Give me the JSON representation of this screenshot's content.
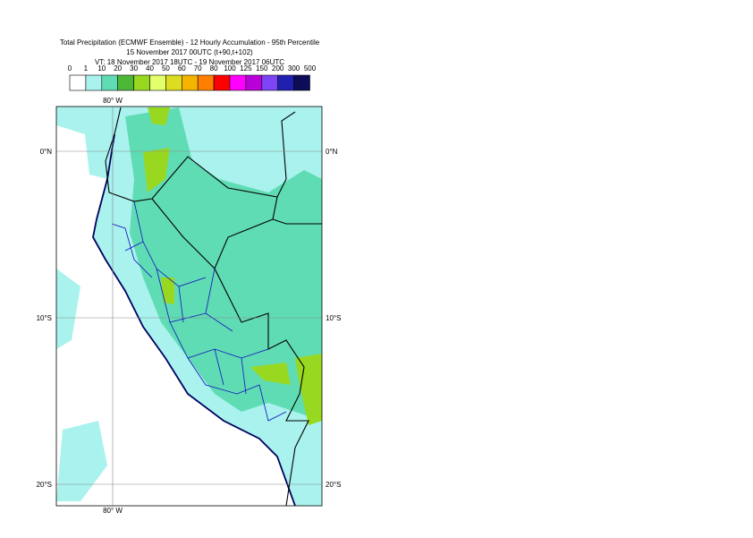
{
  "header": {
    "title": "Total Precipitation (ECMWF Ensemble) - 12 Hourly Accumulation - 95th Percentile",
    "line2": "15 November 2017 00UTC (t+90,t+102)",
    "line3": "VT: 18 November 2017 18UTC - 19 November 2017 06UTC"
  },
  "legend": {
    "labels": [
      0,
      1,
      10,
      20,
      30,
      40,
      50,
      60,
      70,
      80,
      100,
      125,
      150,
      200,
      300,
      500
    ],
    "colors": [
      "#ffffff",
      "#a9f2ee",
      "#60dcb4",
      "#4cb838",
      "#98d820",
      "#e4ff6c",
      "#dcdc20",
      "#f4b400",
      "#ff8000",
      "#ff0000",
      "#ff00ff",
      "#b800d8",
      "#7c44f4",
      "#2020b0",
      "#0c0c58"
    ]
  },
  "map": {
    "lon_label_top": "80° W",
    "lon_label_bottom": "80° W",
    "lat_labels": [
      "0°N",
      "10°S",
      "20°S"
    ]
  }
}
